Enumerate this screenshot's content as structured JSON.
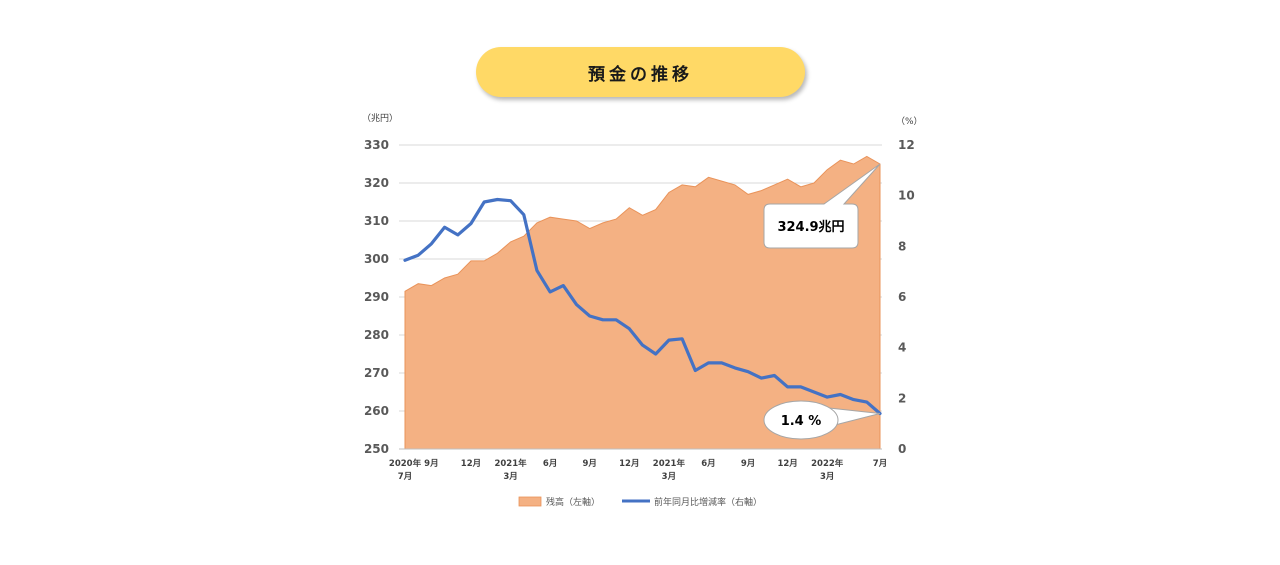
{
  "title": "預金の推移",
  "chart_data": {
    "type": "area+line",
    "left_axis": {
      "unit": "（兆円）",
      "min": 250,
      "max": 330,
      "ticks": [
        250,
        260,
        270,
        280,
        290,
        300,
        310,
        320,
        330
      ]
    },
    "right_axis": {
      "unit": "（%）",
      "min": 0,
      "max": 12,
      "ticks": [
        0,
        2,
        4,
        6,
        8,
        10,
        12
      ]
    },
    "x_labels": [
      {
        "i": 0,
        "lines": [
          "2020年",
          "7月"
        ]
      },
      {
        "i": 2,
        "lines": [
          "9月"
        ]
      },
      {
        "i": 5,
        "lines": [
          "12月"
        ]
      },
      {
        "i": 8,
        "lines": [
          "2021年",
          "3月"
        ]
      },
      {
        "i": 11,
        "lines": [
          "6月"
        ]
      },
      {
        "i": 14,
        "lines": [
          "9月"
        ]
      },
      {
        "i": 17,
        "lines": [
          "12月"
        ]
      },
      {
        "i": 20,
        "lines": [
          "2021年",
          "3月"
        ]
      },
      {
        "i": 23,
        "lines": [
          "6月"
        ]
      },
      {
        "i": 26,
        "lines": [
          "9月"
        ]
      },
      {
        "i": 29,
        "lines": [
          "12月"
        ]
      },
      {
        "i": 32,
        "lines": [
          "2022年",
          "3月"
        ]
      },
      {
        "i": 36,
        "lines": [
          "7月"
        ]
      }
    ],
    "series": [
      {
        "name": "残高（左軸）",
        "type": "area",
        "axis": "left",
        "color": "#f4b183",
        "values": [
          291.5,
          293.5,
          293,
          295,
          296,
          299.5,
          299.5,
          301.5,
          304.5,
          306,
          309.5,
          311,
          310.5,
          310,
          308,
          309.5,
          310.5,
          313.5,
          311.5,
          313,
          317.5,
          319.5,
          319,
          321.5,
          320.5,
          319.5,
          317,
          318,
          319.5,
          321,
          319,
          320,
          323.5,
          326,
          325,
          327,
          325
        ]
      },
      {
        "name": "前年同月比増減率（右軸）",
        "type": "line",
        "axis": "right",
        "color": "#4472c4",
        "values": [
          7.45,
          7.65,
          8.1,
          8.75,
          8.45,
          8.9,
          9.75,
          9.85,
          9.8,
          9.25,
          7.05,
          6.2,
          6.45,
          5.7,
          5.25,
          5.1,
          5.1,
          4.75,
          4.1,
          3.75,
          4.3,
          4.35,
          3.1,
          3.4,
          3.4,
          3.2,
          3.05,
          2.8,
          2.9,
          2.45,
          2.45,
          2.25,
          2.05,
          2.15,
          1.95,
          1.85,
          1.4
        ]
      }
    ],
    "annotations": [
      {
        "text": "324.9兆円",
        "series": 0,
        "shape": "rounded-rect"
      },
      {
        "text": "1.4 %",
        "series": 1,
        "shape": "ellipse"
      }
    ],
    "legend_position": "bottom",
    "grid": true
  }
}
